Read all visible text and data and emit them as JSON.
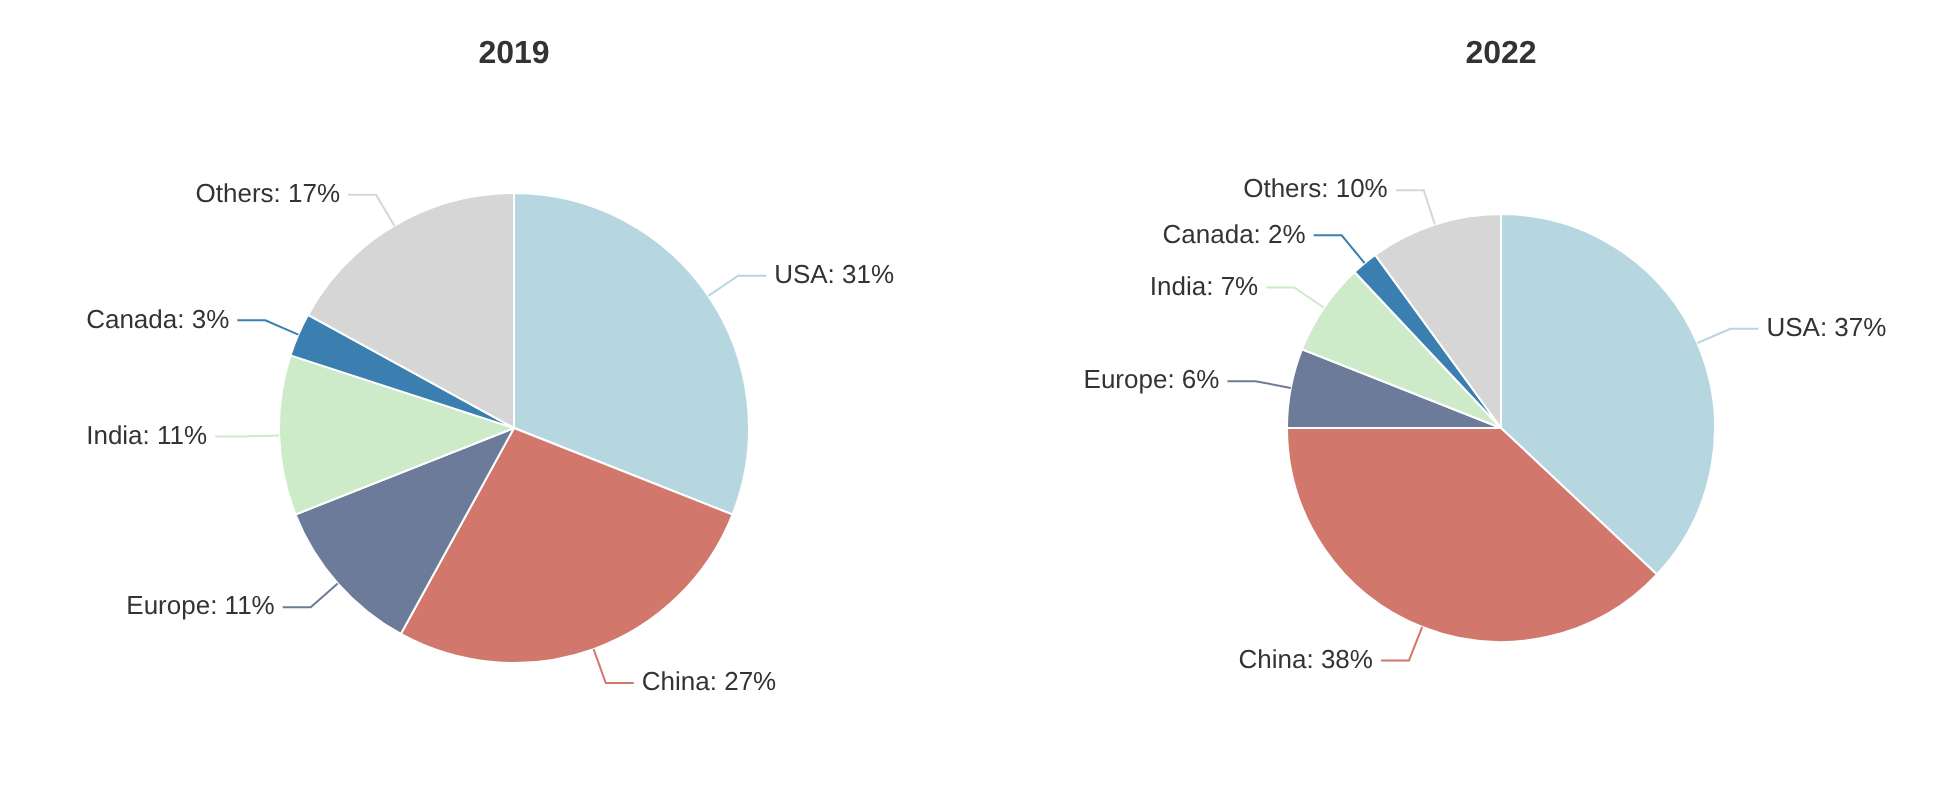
{
  "chart_data": [
    {
      "type": "pie",
      "title": "2019",
      "categories": [
        "USA",
        "China",
        "Europe",
        "India",
        "Canada",
        "Others"
      ],
      "values": [
        31,
        27,
        11,
        11,
        3,
        17
      ],
      "value_labels": [
        "31%",
        "27%",
        "11%",
        "11%",
        "3%",
        "17%"
      ],
      "colors": [
        "#b7d7e0",
        "#d1776c",
        "#6c7b99",
        "#cdeac9",
        "#3a7fb0",
        "#d6d6d6"
      ],
      "legend": false
    },
    {
      "type": "pie",
      "title": "2022",
      "categories": [
        "USA",
        "China",
        "Europe",
        "India",
        "Canada",
        "Others"
      ],
      "values": [
        37,
        38,
        6,
        7,
        2,
        10
      ],
      "value_labels": [
        "37%",
        "38%",
        "6%",
        "7%",
        "2%",
        "10%"
      ],
      "colors": [
        "#b7d7e0",
        "#d1776c",
        "#6c7b99",
        "#cdeac9",
        "#3a7fb0",
        "#d6d6d6"
      ],
      "legend": false
    }
  ]
}
